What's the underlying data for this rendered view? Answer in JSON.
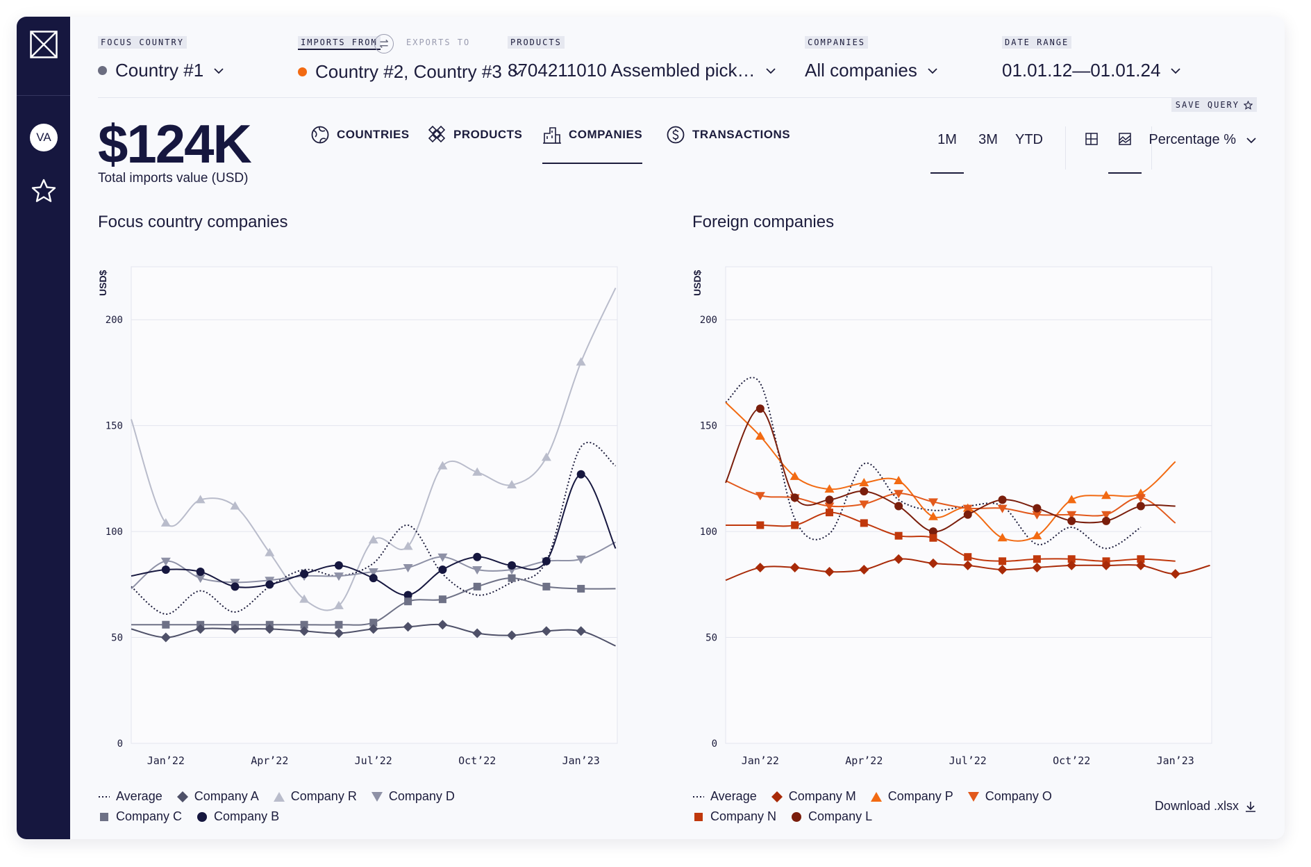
{
  "sidebar": {
    "logo_icon": "logo-x-icon",
    "avatar_initials": "VA",
    "favorites_icon": "star-icon"
  },
  "filters": {
    "focus_country": {
      "label": "FOCUS COUNTRY",
      "value": "Country #1",
      "dot_color": "#6b6d80"
    },
    "imports_from": {
      "label": "IMPORTS FROM",
      "value": "Country #2, Country #3",
      "dot_color": "#f26a12"
    },
    "exports_to": {
      "label": "EXPORTS TO"
    },
    "products": {
      "label": "PRODUCTS",
      "value": "8704211010 Assembled pick…"
    },
    "companies": {
      "label": "COMPANIES",
      "value": "All companies"
    },
    "date_range": {
      "label": "DATE RANGE",
      "value": "01.01.12—01.01.24"
    }
  },
  "save_query": "SAVE QUERY",
  "summary": {
    "value": "$124K",
    "label": "Total imports value (USD)"
  },
  "tabs": [
    {
      "label": "COUNTRIES",
      "icon": "globe-icon"
    },
    {
      "label": "PRODUCTS",
      "icon": "products-icon"
    },
    {
      "label": "COMPANIES",
      "icon": "building-icon",
      "active": true
    },
    {
      "label": "TRANSACTIONS",
      "icon": "dollar-icon"
    }
  ],
  "periods": [
    {
      "label": "1M",
      "active": true
    },
    {
      "label": "3M"
    },
    {
      "label": "YTD"
    }
  ],
  "views": [
    {
      "icon": "table-view-icon"
    },
    {
      "icon": "chart-view-icon",
      "active": true
    }
  ],
  "metric": "Percentage %",
  "download": "Download .xlsx",
  "chart_data": [
    {
      "type": "line",
      "title": "Focus country companies",
      "ylabel": "USD$",
      "ylim": [
        0,
        225
      ],
      "yticks": [
        0,
        50,
        100,
        150,
        200
      ],
      "x_ticks": [
        {
          "label": "Jan’22",
          "x": 1
        },
        {
          "label": "Apr’22",
          "x": 4
        },
        {
          "label": "Jul’22",
          "x": 7
        },
        {
          "label": "Oct’22",
          "x": 10
        },
        {
          "label": "Jan’23",
          "x": 13
        }
      ],
      "x_range": [
        0,
        14.05
      ],
      "grid": true,
      "series": [
        {
          "name": "Company R",
          "color": "#b9bccb",
          "marker": "triangle-up",
          "values": [
            153,
            104,
            115,
            112,
            90,
            68,
            65,
            96,
            93,
            131,
            128,
            122,
            135,
            180,
            215
          ],
          "line_end": 215
        },
        {
          "name": "Average",
          "color": "#1c1c3c",
          "marker": "none",
          "dotted": true,
          "values": [
            74,
            61,
            72,
            62,
            74,
            82,
            79,
            85,
            103,
            80,
            70,
            76,
            86,
            140,
            131
          ]
        },
        {
          "name": "Company D",
          "color": "#8e91a6",
          "marker": "triangle-down",
          "values": [
            73,
            86,
            78,
            76,
            77,
            79,
            79,
            81,
            83,
            88,
            82,
            82,
            86,
            87,
            95
          ]
        },
        {
          "name": "Company B",
          "color": "#16173f",
          "marker": "circle",
          "values": [
            79,
            82,
            81,
            74,
            75,
            80,
            84,
            78,
            70,
            82,
            88,
            84,
            86,
            127,
            92
          ]
        },
        {
          "name": "Company C",
          "color": "#6e7186",
          "marker": "square",
          "values": [
            56,
            56,
            56,
            56,
            56,
            56,
            56,
            57,
            67,
            68,
            74,
            78,
            74,
            73,
            73
          ]
        },
        {
          "name": "Company A",
          "color": "#4e5068",
          "marker": "diamond",
          "values": [
            54,
            50,
            54,
            54,
            54,
            53,
            52,
            54,
            55,
            56,
            52,
            51,
            53,
            53,
            46
          ]
        }
      ]
    },
    {
      "type": "line",
      "title": "Foreign companies",
      "ylabel": "USD$",
      "ylim": [
        0,
        225
      ],
      "yticks": [
        0,
        50,
        100,
        150,
        200
      ],
      "x_ticks": [
        {
          "label": "Jan’22",
          "x": 1
        },
        {
          "label": "Apr’22",
          "x": 4
        },
        {
          "label": "Jul’22",
          "x": 7
        },
        {
          "label": "Oct’22",
          "x": 10
        },
        {
          "label": "Jan’23",
          "x": 13
        }
      ],
      "x_range": [
        0,
        14.05
      ],
      "grid": true,
      "series": [
        {
          "name": "Average",
          "color": "#1c1c3c",
          "marker": "none",
          "dotted": true,
          "values": [
            161,
            170,
            106,
            99,
            132,
            115,
            110,
            112,
            112,
            94,
            102,
            92,
            102
          ]
        },
        {
          "name": "Company P",
          "color": "#f26a12",
          "marker": "triangle-up",
          "values": [
            161,
            145,
            126,
            120,
            123,
            124,
            107,
            111,
            97,
            98,
            115,
            117,
            118,
            133
          ]
        },
        {
          "name": "Company O",
          "color": "#e2591c",
          "marker": "triangle-down",
          "values": [
            124,
            117,
            116,
            112,
            113,
            118,
            114,
            111,
            111,
            108,
            108,
            108,
            116,
            104
          ]
        },
        {
          "name": "Company L",
          "color": "#7a1e0c",
          "marker": "circle",
          "values": [
            123,
            158,
            116,
            115,
            119,
            112,
            100,
            108,
            115,
            111,
            105,
            105,
            112,
            112
          ]
        },
        {
          "name": "Company N",
          "color": "#c0380c",
          "marker": "square",
          "values": [
            103,
            103,
            103,
            109,
            104,
            98,
            97,
            88,
            86,
            87,
            87,
            86,
            87,
            86
          ]
        },
        {
          "name": "Company M",
          "color": "#a82a08",
          "marker": "diamond",
          "values": [
            77,
            83,
            83,
            81,
            82,
            87,
            85,
            84,
            82,
            83,
            84,
            84,
            84,
            80,
            84
          ]
        }
      ]
    }
  ]
}
